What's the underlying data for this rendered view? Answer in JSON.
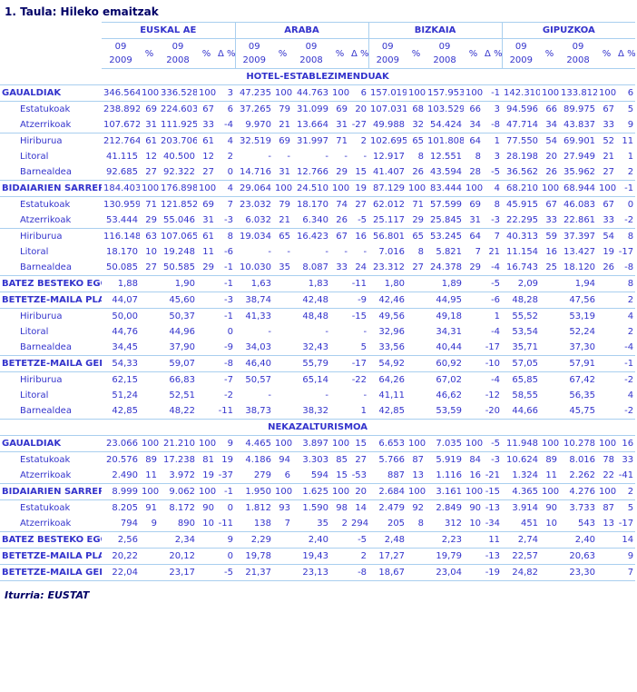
{
  "title": "1. Taula: Hileko emaitzak",
  "footer": "Iturria: EUSTAT",
  "colors": {
    "title_navy": "#000066",
    "group_header_blue": "#003399",
    "data_blue": "#3333CC",
    "rule_light_blue": "#A9CFEF",
    "background": "#FFFFFF"
  },
  "table": {
    "groups": [
      "EUSKAL AE",
      "ARABA",
      "BIZKAIA",
      "GIPUZKOA"
    ],
    "subcolumns": [
      [
        "09",
        "2009"
      ],
      [
        "%"
      ],
      [
        "09",
        "2008"
      ],
      [
        "%"
      ],
      [
        "Δ %"
      ]
    ],
    "sections": [
      {
        "name": "HOTEL-ESTABLEZIMENDUAK",
        "rows": [
          {
            "label": "GAUALDIAK",
            "style": "total",
            "rule_after": true,
            "cells": [
              "346.564",
              "100",
              "336.528",
              "100",
              "3",
              "47.235",
              "100",
              "44.763",
              "100",
              "6",
              "157.019",
              "100",
              "157.953",
              "100",
              "-1",
              "142.310",
              "100",
              "133.812",
              "100",
              "6"
            ]
          },
          {
            "label": "Estatukoak",
            "style": "sub",
            "rule_after": false,
            "cells": [
              "238.892",
              "69",
              "224.603",
              "67",
              "6",
              "37.265",
              "79",
              "31.099",
              "69",
              "20",
              "107.031",
              "68",
              "103.529",
              "66",
              "3",
              "94.596",
              "66",
              "89.975",
              "67",
              "5"
            ]
          },
          {
            "label": "Atzerrikoak",
            "style": "sub",
            "rule_after": true,
            "cells": [
              "107.672",
              "31",
              "111.925",
              "33",
              "-4",
              "9.970",
              "21",
              "13.664",
              "31",
              "-27",
              "49.988",
              "32",
              "54.424",
              "34",
              "-8",
              "47.714",
              "34",
              "43.837",
              "33",
              "9"
            ]
          },
          {
            "label": "Hiriburua",
            "style": "sub",
            "rule_after": false,
            "cells": [
              "212.764",
              "61",
              "203.706",
              "61",
              "4",
              "32.519",
              "69",
              "31.997",
              "71",
              "2",
              "102.695",
              "65",
              "101.808",
              "64",
              "1",
              "77.550",
              "54",
              "69.901",
              "52",
              "11"
            ]
          },
          {
            "label": "Litoral",
            "style": "sub",
            "rule_after": false,
            "cells": [
              "41.115",
              "12",
              "40.500",
              "12",
              "2",
              "-",
              "-",
              "-",
              "-",
              "-",
              "12.917",
              "8",
              "12.551",
              "8",
              "3",
              "28.198",
              "20",
              "27.949",
              "21",
              "1"
            ]
          },
          {
            "label": "Barnealdea",
            "style": "sub",
            "rule_after": true,
            "cells": [
              "92.685",
              "27",
              "92.322",
              "27",
              "0",
              "14.716",
              "31",
              "12.766",
              "29",
              "15",
              "41.407",
              "26",
              "43.594",
              "28",
              "-5",
              "36.562",
              "26",
              "35.962",
              "27",
              "2"
            ]
          },
          {
            "label": "BIDAIARIEN SARRERAK",
            "style": "total",
            "rule_after": true,
            "cells": [
              "184.403",
              "100",
              "176.898",
              "100",
              "4",
              "29.064",
              "100",
              "24.510",
              "100",
              "19",
              "87.129",
              "100",
              "83.444",
              "100",
              "4",
              "68.210",
              "100",
              "68.944",
              "100",
              "-1"
            ]
          },
          {
            "label": "Estatukoak",
            "style": "sub",
            "rule_after": false,
            "cells": [
              "130.959",
              "71",
              "121.852",
              "69",
              "7",
              "23.032",
              "79",
              "18.170",
              "74",
              "27",
              "62.012",
              "71",
              "57.599",
              "69",
              "8",
              "45.915",
              "67",
              "46.083",
              "67",
              "0"
            ]
          },
          {
            "label": "Atzerrikoak",
            "style": "sub",
            "rule_after": true,
            "cells": [
              "53.444",
              "29",
              "55.046",
              "31",
              "-3",
              "6.032",
              "21",
              "6.340",
              "26",
              "-5",
              "25.117",
              "29",
              "25.845",
              "31",
              "-3",
              "22.295",
              "33",
              "22.861",
              "33",
              "-2"
            ]
          },
          {
            "label": "Hiriburua",
            "style": "sub",
            "rule_after": false,
            "cells": [
              "116.148",
              "63",
              "107.065",
              "61",
              "8",
              "19.034",
              "65",
              "16.423",
              "67",
              "16",
              "56.801",
              "65",
              "53.245",
              "64",
              "7",
              "40.313",
              "59",
              "37.397",
              "54",
              "8"
            ]
          },
          {
            "label": "Litoral",
            "style": "sub",
            "rule_after": false,
            "cells": [
              "18.170",
              "10",
              "19.248",
              "11",
              "-6",
              "-",
              "-",
              "-",
              "-",
              "-",
              "7.016",
              "8",
              "5.821",
              "7",
              "21",
              "11.154",
              "16",
              "13.427",
              "19",
              "-17"
            ]
          },
          {
            "label": "Barnealdea",
            "style": "sub",
            "rule_after": true,
            "cells": [
              "50.085",
              "27",
              "50.585",
              "29",
              "-1",
              "10.030",
              "35",
              "8.087",
              "33",
              "24",
              "23.312",
              "27",
              "24.378",
              "29",
              "-4",
              "16.743",
              "25",
              "18.120",
              "26",
              "-8"
            ]
          },
          {
            "label": "BATEZ BESTEKO EGONALDIA",
            "style": "total",
            "rule_after": true,
            "cells": [
              "1,88",
              "",
              "1,90",
              "",
              "-1",
              "1,63",
              "",
              "1,83",
              "",
              "-11",
              "1,80",
              "",
              "1,89",
              "",
              "-5",
              "2,09",
              "",
              "1,94",
              "",
              "8"
            ]
          },
          {
            "label": "BETETZE-MAILA PLAZAKA",
            "style": "total",
            "rule_after": true,
            "cells": [
              "44,07",
              "",
              "45,60",
              "",
              "-3",
              "38,74",
              "",
              "42,48",
              "",
              "-9",
              "42,46",
              "",
              "44,95",
              "",
              "-6",
              "48,28",
              "",
              "47,56",
              "",
              "2"
            ]
          },
          {
            "label": "Hiriburua",
            "style": "sub",
            "rule_after": false,
            "cells": [
              "50,00",
              "",
              "50,37",
              "",
              "-1",
              "41,33",
              "",
              "48,48",
              "",
              "-15",
              "49,56",
              "",
              "49,18",
              "",
              "1",
              "55,52",
              "",
              "53,19",
              "",
              "4"
            ]
          },
          {
            "label": "Litoral",
            "style": "sub",
            "rule_after": false,
            "cells": [
              "44,76",
              "",
              "44,96",
              "",
              "0",
              "-",
              "",
              "-",
              "",
              "-",
              "32,96",
              "",
              "34,31",
              "",
              "-4",
              "53,54",
              "",
              "52,24",
              "",
              "2"
            ]
          },
          {
            "label": "Barnealdea",
            "style": "sub",
            "rule_after": true,
            "cells": [
              "34,45",
              "",
              "37,90",
              "",
              "-9",
              "34,03",
              "",
              "32,43",
              "",
              "5",
              "33,56",
              "",
              "40,44",
              "",
              "-17",
              "35,71",
              "",
              "37,30",
              "",
              "-4"
            ]
          },
          {
            "label": "BETETZE-MAILA GELAKA",
            "style": "total",
            "rule_after": true,
            "cells": [
              "54,33",
              "",
              "59,07",
              "",
              "-8",
              "46,40",
              "",
              "55,79",
              "",
              "-17",
              "54,92",
              "",
              "60,92",
              "",
              "-10",
              "57,05",
              "",
              "57,91",
              "",
              "-1"
            ]
          },
          {
            "label": "Hiriburua",
            "style": "sub",
            "rule_after": false,
            "cells": [
              "62,15",
              "",
              "66,83",
              "",
              "-7",
              "50,57",
              "",
              "65,14",
              "",
              "-22",
              "64,26",
              "",
              "67,02",
              "",
              "-4",
              "65,85",
              "",
              "67,42",
              "",
              "-2"
            ]
          },
          {
            "label": "Litoral",
            "style": "sub",
            "rule_after": false,
            "cells": [
              "51,24",
              "",
              "52,51",
              "",
              "-2",
              "-",
              "",
              "-",
              "",
              "-",
              "41,11",
              "",
              "46,62",
              "",
              "-12",
              "58,55",
              "",
              "56,35",
              "",
              "4"
            ]
          },
          {
            "label": "Barnealdea",
            "style": "sub",
            "rule_after": true,
            "cells": [
              "42,85",
              "",
              "48,22",
              "",
              "-11",
              "38,73",
              "",
              "38,32",
              "",
              "1",
              "42,85",
              "",
              "53,59",
              "",
              "-20",
              "44,66",
              "",
              "45,75",
              "",
              "-2"
            ]
          }
        ]
      },
      {
        "name": "NEKAZALTURISMOA",
        "rows": [
          {
            "label": "GAUALDIAK",
            "style": "total",
            "rule_after": true,
            "cells": [
              "23.066",
              "100",
              "21.210",
              "100",
              "9",
              "4.465",
              "100",
              "3.897",
              "100",
              "15",
              "6.653",
              "100",
              "7.035",
              "100",
              "-5",
              "11.948",
              "100",
              "10.278",
              "100",
              "16"
            ]
          },
          {
            "label": "Estatukoak",
            "style": "sub",
            "rule_after": false,
            "cells": [
              "20.576",
              "89",
              "17.238",
              "81",
              "19",
              "4.186",
              "94",
              "3.303",
              "85",
              "27",
              "5.766",
              "87",
              "5.919",
              "84",
              "-3",
              "10.624",
              "89",
              "8.016",
              "78",
              "33"
            ]
          },
          {
            "label": "Atzerrikoak",
            "style": "sub",
            "rule_after": true,
            "cells": [
              "2.490",
              "11",
              "3.972",
              "19",
              "-37",
              "279",
              "6",
              "594",
              "15",
              "-53",
              "887",
              "13",
              "1.116",
              "16",
              "-21",
              "1.324",
              "11",
              "2.262",
              "22",
              "-41"
            ]
          },
          {
            "label": "BIDAIARIEN SARRERAK",
            "style": "total",
            "rule_after": true,
            "cells": [
              "8.999",
              "100",
              "9.062",
              "100",
              "-1",
              "1.950",
              "100",
              "1.625",
              "100",
              "20",
              "2.684",
              "100",
              "3.161",
              "100",
              "-15",
              "4.365",
              "100",
              "4.276",
              "100",
              "2"
            ]
          },
          {
            "label": "Estatukoak",
            "style": "sub",
            "rule_after": false,
            "cells": [
              "8.205",
              "91",
              "8.172",
              "90",
              "0",
              "1.812",
              "93",
              "1.590",
              "98",
              "14",
              "2.479",
              "92",
              "2.849",
              "90",
              "-13",
              "3.914",
              "90",
              "3.733",
              "87",
              "5"
            ]
          },
          {
            "label": "Atzerrikoak",
            "style": "sub",
            "rule_after": true,
            "cells": [
              "794",
              "9",
              "890",
              "10",
              "-11",
              "138",
              "7",
              "35",
              "2",
              "294",
              "205",
              "8",
              "312",
              "10",
              "-34",
              "451",
              "10",
              "543",
              "13",
              "-17"
            ]
          },
          {
            "label": "BATEZ BESTEKO EGONALDIA",
            "style": "total",
            "rule_after": true,
            "cells": [
              "2,56",
              "",
              "2,34",
              "",
              "9",
              "2,29",
              "",
              "2,40",
              "",
              "-5",
              "2,48",
              "",
              "2,23",
              "",
              "11",
              "2,74",
              "",
              "2,40",
              "",
              "14"
            ]
          },
          {
            "label": "BETETZE-MAILA PLAZAKA",
            "style": "total",
            "rule_after": true,
            "cells": [
              "20,22",
              "",
              "20,12",
              "",
              "0",
              "19,78",
              "",
              "19,43",
              "",
              "2",
              "17,27",
              "",
              "19,79",
              "",
              "-13",
              "22,57",
              "",
              "20,63",
              "",
              "9"
            ]
          },
          {
            "label": "BETETZE-MAILA GELAKA",
            "style": "total",
            "rule_after": true,
            "cells": [
              "22,04",
              "",
              "23,17",
              "",
              "-5",
              "21,37",
              "",
              "23,13",
              "",
              "-8",
              "18,67",
              "",
              "23,04",
              "",
              "-19",
              "24,82",
              "",
              "23,30",
              "",
              "7"
            ]
          }
        ]
      }
    ]
  }
}
